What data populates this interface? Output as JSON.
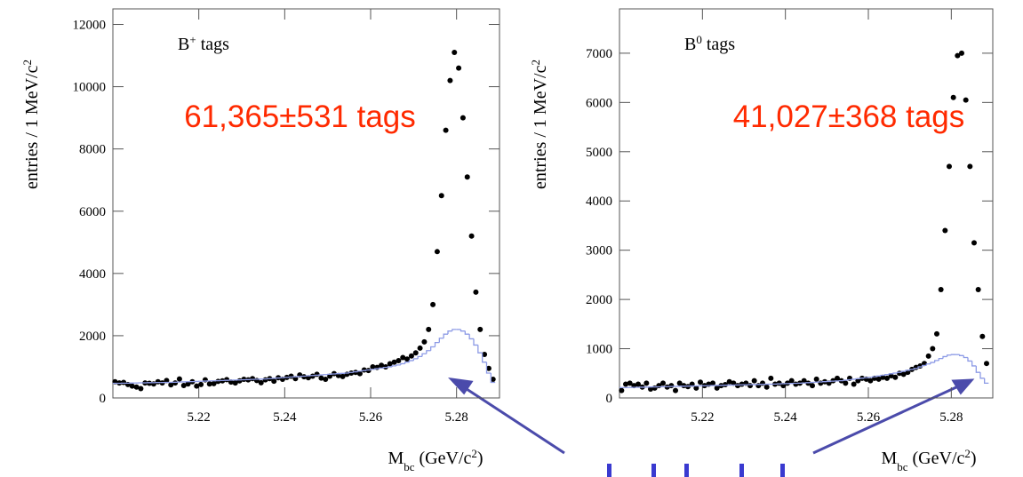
{
  "chart_data": [
    {
      "type": "scatter",
      "panel_label": [
        {
          "text": "B"
        },
        {
          "text": "+",
          "shift": "sup"
        },
        {
          "text": " tags"
        }
      ],
      "annotation": "61,365±531 tags",
      "annotation_color": "#ff2a00",
      "xlabel": [
        {
          "text": "M"
        },
        {
          "text": "bc",
          "shift": "sub"
        },
        {
          "text": " (GeV/c"
        },
        {
          "text": "2",
          "shift": "sup"
        },
        {
          "text": ")"
        }
      ],
      "ylabel": [
        {
          "text": "entries / 1 MeV/c"
        },
        {
          "text": "2",
          "shift": "sup"
        }
      ],
      "xlim": [
        5.2,
        5.29
      ],
      "xticks": [
        5.22,
        5.24,
        5.26,
        5.28
      ],
      "ylim": [
        0,
        12500
      ],
      "yticks": [
        0,
        2000,
        4000,
        6000,
        8000,
        10000,
        12000
      ],
      "x": [
        5.2005,
        5.2015,
        5.2025,
        5.2035,
        5.2045,
        5.2055,
        5.2065,
        5.2075,
        5.2085,
        5.2095,
        5.2105,
        5.2115,
        5.2125,
        5.2135,
        5.2145,
        5.2155,
        5.2165,
        5.2175,
        5.2185,
        5.2195,
        5.2205,
        5.2215,
        5.2225,
        5.2235,
        5.2245,
        5.2255,
        5.2265,
        5.2275,
        5.2285,
        5.2295,
        5.2305,
        5.2315,
        5.2325,
        5.2335,
        5.2345,
        5.2355,
        5.2365,
        5.2375,
        5.2385,
        5.2395,
        5.2405,
        5.2415,
        5.2425,
        5.2435,
        5.2445,
        5.2455,
        5.2465,
        5.2475,
        5.2485,
        5.2495,
        5.2505,
        5.2515,
        5.2525,
        5.2535,
        5.2545,
        5.2555,
        5.2565,
        5.2575,
        5.2585,
        5.2595,
        5.2605,
        5.2615,
        5.2625,
        5.2635,
        5.2645,
        5.2655,
        5.2665,
        5.2675,
        5.2685,
        5.2695,
        5.2705,
        5.2715,
        5.2725,
        5.2735,
        5.2745,
        5.2755,
        5.2765,
        5.2775,
        5.2785,
        5.2795,
        5.2805,
        5.2815,
        5.2825,
        5.2835,
        5.2845,
        5.2855,
        5.2865,
        5.2875,
        5.2885
      ],
      "series": [
        {
          "color": "#000000",
          "style": "points",
          "values": [
            520,
            480,
            500,
            430,
            380,
            350,
            300,
            480,
            470,
            450,
            520,
            480,
            560,
            420,
            480,
            610,
            400,
            450,
            520,
            380,
            430,
            580,
            450,
            460,
            530,
            550,
            590,
            510,
            480,
            550,
            600,
            580,
            620,
            560,
            490,
            580,
            620,
            540,
            650,
            600,
            660,
            700,
            620,
            740,
            680,
            650,
            700,
            760,
            640,
            600,
            700,
            780,
            720,
            690,
            760,
            800,
            820,
            780,
            900,
            880,
            1000,
            980,
            1050,
            1000,
            1100,
            1150,
            1200,
            1300,
            1250,
            1350,
            1450,
            1600,
            1800,
            2200,
            3000,
            4700,
            6500,
            8600,
            10200,
            11100,
            10600,
            9000,
            7100,
            5200,
            3400,
            2200,
            1400,
            950,
            600
          ]
        },
        {
          "color": "#8d9be6",
          "style": "step",
          "values": [
            470,
            470,
            475,
            475,
            480,
            480,
            485,
            485,
            490,
            490,
            495,
            495,
            500,
            500,
            505,
            510,
            515,
            520,
            525,
            530,
            535,
            540,
            545,
            550,
            555,
            560,
            565,
            570,
            575,
            580,
            585,
            590,
            595,
            600,
            605,
            610,
            620,
            630,
            640,
            650,
            660,
            670,
            680,
            690,
            700,
            710,
            720,
            730,
            740,
            750,
            760,
            770,
            780,
            790,
            800,
            820,
            840,
            860,
            880,
            900,
            920,
            940,
            960,
            980,
            1000,
            1030,
            1060,
            1100,
            1150,
            1200,
            1260,
            1330,
            1420,
            1520,
            1640,
            1780,
            1920,
            2050,
            2150,
            2200,
            2200,
            2150,
            2050,
            1900,
            1700,
            1450,
            1150,
            800,
            500
          ]
        }
      ]
    },
    {
      "type": "scatter",
      "panel_label": [
        {
          "text": "B"
        },
        {
          "text": "0",
          "shift": "sup"
        },
        {
          "text": " tags"
        }
      ],
      "annotation": "41,027±368 tags",
      "annotation_color": "#ff2a00",
      "xlabel": [
        {
          "text": "M"
        },
        {
          "text": "bc",
          "shift": "sub"
        },
        {
          "text": " (GeV/c"
        },
        {
          "text": "2",
          "shift": "sup"
        },
        {
          "text": ")"
        }
      ],
      "ylabel": [
        {
          "text": "entries / 1 MeV/c"
        },
        {
          "text": "2",
          "shift": "sup"
        }
      ],
      "xlim": [
        5.2,
        5.29
      ],
      "xticks": [
        5.22,
        5.24,
        5.26,
        5.28
      ],
      "ylim": [
        0,
        7900
      ],
      "yticks": [
        0,
        1000,
        2000,
        3000,
        4000,
        5000,
        6000,
        7000
      ],
      "x": [
        5.2005,
        5.2015,
        5.2025,
        5.2035,
        5.2045,
        5.2055,
        5.2065,
        5.2075,
        5.2085,
        5.2095,
        5.2105,
        5.2115,
        5.2125,
        5.2135,
        5.2145,
        5.2155,
        5.2165,
        5.2175,
        5.2185,
        5.2195,
        5.2205,
        5.2215,
        5.2225,
        5.2235,
        5.2245,
        5.2255,
        5.2265,
        5.2275,
        5.2285,
        5.2295,
        5.2305,
        5.2315,
        5.2325,
        5.2335,
        5.2345,
        5.2355,
        5.2365,
        5.2375,
        5.2385,
        5.2395,
        5.2405,
        5.2415,
        5.2425,
        5.2435,
        5.2445,
        5.2455,
        5.2465,
        5.2475,
        5.2485,
        5.2495,
        5.2505,
        5.2515,
        5.2525,
        5.2535,
        5.2545,
        5.2555,
        5.2565,
        5.2575,
        5.2585,
        5.2595,
        5.2605,
        5.2615,
        5.2625,
        5.2635,
        5.2645,
        5.2655,
        5.2665,
        5.2675,
        5.2685,
        5.2695,
        5.2705,
        5.2715,
        5.2725,
        5.2735,
        5.2745,
        5.2755,
        5.2765,
        5.2775,
        5.2785,
        5.2795,
        5.2805,
        5.2815,
        5.2825,
        5.2835,
        5.2845,
        5.2855,
        5.2865,
        5.2875,
        5.2885
      ],
      "series": [
        {
          "color": "#000000",
          "style": "points",
          "values": [
            150,
            280,
            300,
            250,
            280,
            220,
            300,
            180,
            200,
            250,
            300,
            220,
            250,
            150,
            300,
            250,
            230,
            280,
            200,
            320,
            250,
            280,
            300,
            200,
            250,
            270,
            330,
            300,
            250,
            280,
            300,
            250,
            350,
            250,
            300,
            220,
            400,
            280,
            300,
            250,
            300,
            350,
            280,
            300,
            350,
            300,
            250,
            380,
            300,
            330,
            300,
            350,
            400,
            350,
            300,
            400,
            280,
            350,
            400,
            380,
            350,
            400,
            380,
            420,
            400,
            450,
            420,
            500,
            480,
            520,
            580,
            620,
            650,
            700,
            850,
            1000,
            1300,
            2200,
            3400,
            4700,
            6100,
            6950,
            7000,
            6050,
            4700,
            3150,
            2200,
            1250,
            700
          ]
        },
        {
          "color": "#8d9be6",
          "style": "step",
          "values": [
            210,
            210,
            212,
            214,
            216,
            218,
            220,
            222,
            224,
            226,
            228,
            230,
            232,
            234,
            236,
            238,
            240,
            242,
            244,
            246,
            248,
            250,
            252,
            254,
            256,
            258,
            260,
            262,
            264,
            266,
            268,
            270,
            272,
            274,
            276,
            278,
            280,
            282,
            285,
            288,
            291,
            294,
            297,
            300,
            305,
            310,
            315,
            320,
            325,
            330,
            335,
            340,
            345,
            350,
            360,
            370,
            380,
            390,
            400,
            410,
            420,
            430,
            445,
            460,
            475,
            490,
            505,
            520,
            540,
            560,
            580,
            600,
            630,
            660,
            690,
            720,
            760,
            800,
            840,
            870,
            880,
            880,
            860,
            820,
            750,
            650,
            520,
            400,
            300
          ]
        }
      ]
    }
  ]
}
